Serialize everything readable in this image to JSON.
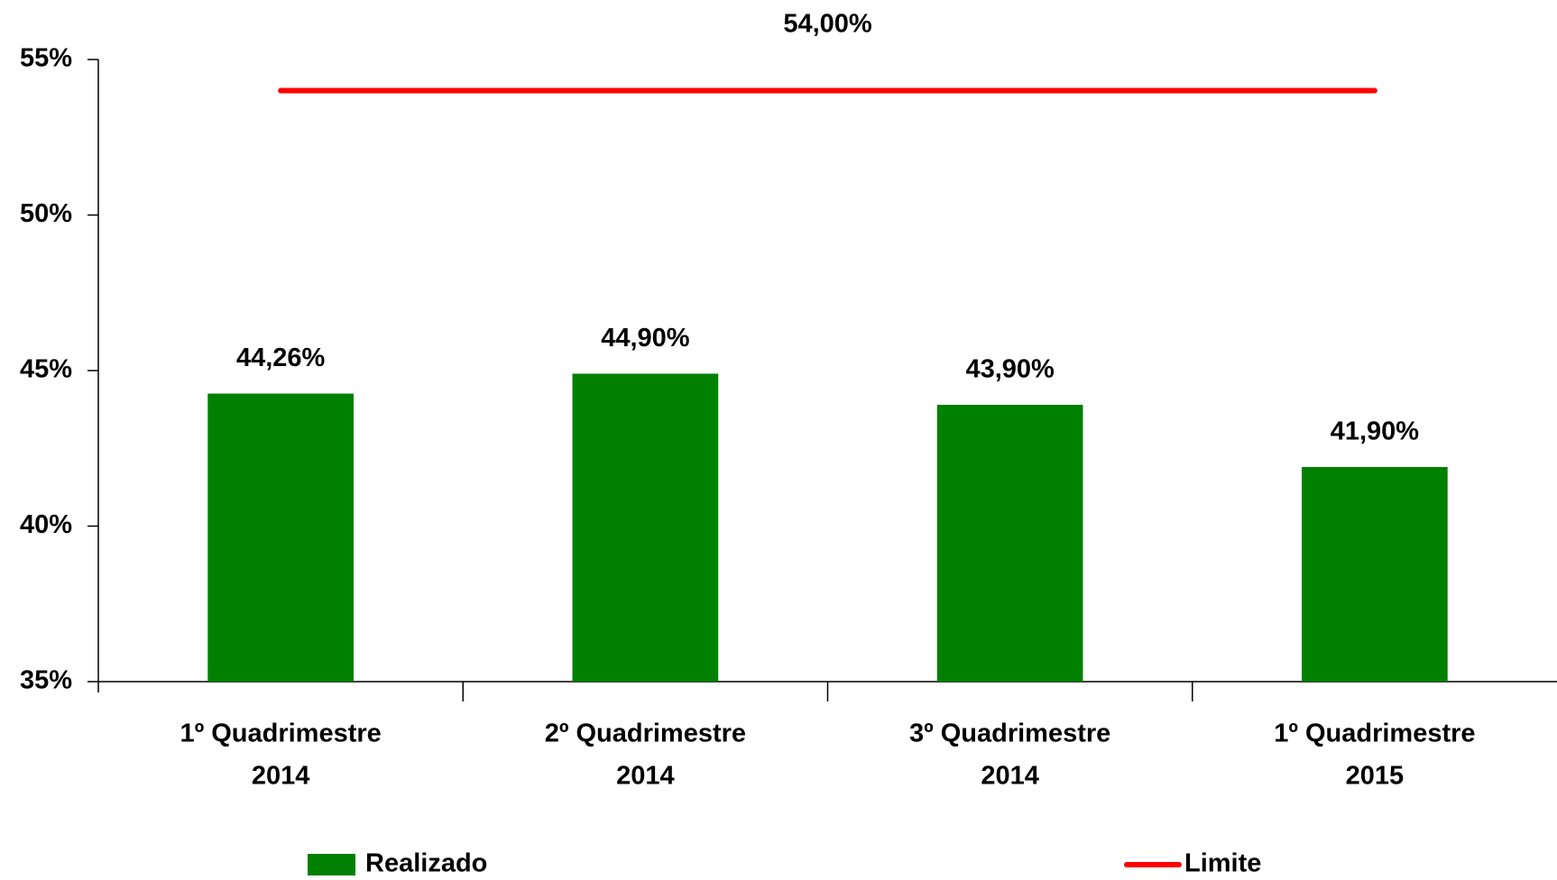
{
  "chart_data": {
    "type": "bar",
    "categories": [
      [
        "1º Quadrimestre",
        "2014"
      ],
      [
        "2º Quadrimestre",
        "2014"
      ],
      [
        "3º Quadrimestre",
        "2014"
      ],
      [
        "1º Quadrimestre",
        "2015"
      ]
    ],
    "series": [
      {
        "name": "Realizado",
        "type": "bar",
        "color": "#008000",
        "values": [
          44.26,
          44.9,
          43.9,
          41.9
        ],
        "value_labels": [
          "44,26%",
          "44,90%",
          "43,90%",
          "41,90%"
        ]
      },
      {
        "name": "Limite",
        "type": "line",
        "color": "#ff0000",
        "values": [
          54,
          54,
          54,
          54
        ],
        "value_label": "54,00%"
      }
    ],
    "ylim": [
      35,
      55
    ],
    "yticks": [
      {
        "value": 35,
        "label": "35%"
      },
      {
        "value": 40,
        "label": "40%"
      },
      {
        "value": 45,
        "label": "45%"
      },
      {
        "value": 50,
        "label": "50%"
      },
      {
        "value": 55,
        "label": "55%"
      }
    ],
    "grid": false,
    "legend": "bottom"
  }
}
